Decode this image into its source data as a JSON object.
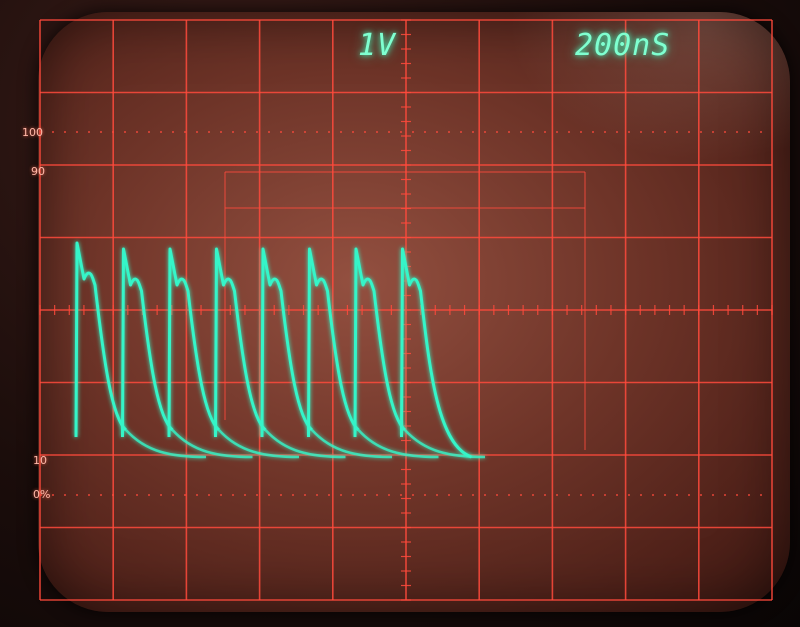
{
  "readouts": {
    "volts_per_div": "1V",
    "time_per_div": "200nS"
  },
  "graticule": {
    "marks": {
      "m100": "100",
      "m90": "90",
      "m10": "10",
      "m0": "0%"
    },
    "color": "#ff4a3c",
    "divisions_horizontal": 10,
    "divisions_vertical": 8
  },
  "trace": {
    "color": "#35f5c8",
    "pulse_count": 8
  }
}
